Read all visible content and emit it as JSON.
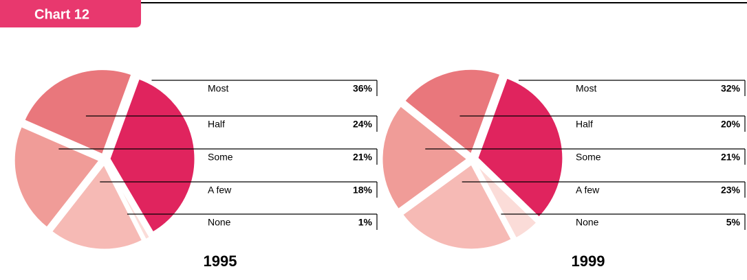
{
  "header": {
    "title": "Chart 12"
  },
  "chart_data": [
    {
      "type": "pie",
      "title": "1995",
      "categories": [
        "Most",
        "Half",
        "Some",
        "A few",
        "None"
      ],
      "values": [
        36,
        24,
        21,
        18,
        1
      ],
      "value_labels": [
        "36%",
        "24%",
        "21%",
        "18%",
        "1%"
      ],
      "colors": [
        "#e0245e",
        "#e9777c",
        "#f09c98",
        "#f6bab5",
        "#fbdcd8"
      ]
    },
    {
      "type": "pie",
      "title": "1999",
      "categories": [
        "Most",
        "Half",
        "Some",
        "A few",
        "None"
      ],
      "values": [
        32,
        20,
        21,
        23,
        5
      ],
      "value_labels": [
        "32%",
        "20%",
        "21%",
        "23%",
        "5%"
      ],
      "colors": [
        "#e0245e",
        "#e9777c",
        "#f09c98",
        "#f6bab5",
        "#fbdcd8"
      ]
    }
  ]
}
